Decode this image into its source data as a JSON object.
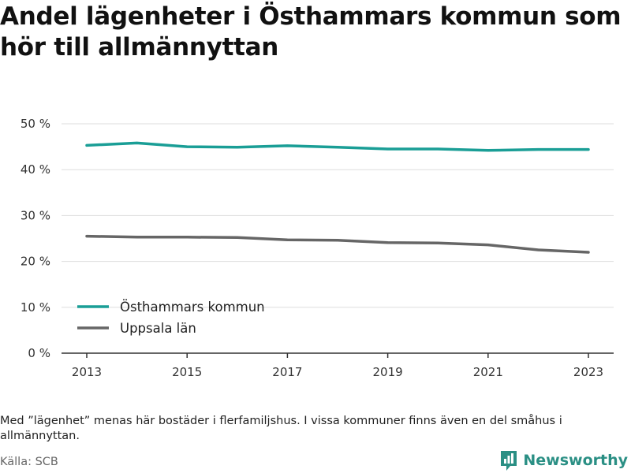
{
  "title": "Andel lägenheter i Östhammars kommun som hör till allmännyttan",
  "note": "Med ”lägenhet” menas här bostäder i flerfamiljshus. I vissa kommuner finns även en del småhus i allmännyttan.",
  "source": "Källa: SCB",
  "brand": {
    "name": "Newsworthy",
    "icon": "newsworthy-logo-icon",
    "color": "#2a8f84"
  },
  "chart_data": {
    "type": "line",
    "x": [
      2013,
      2014,
      2015,
      2016,
      2017,
      2018,
      2019,
      2020,
      2021,
      2022,
      2023
    ],
    "x_ticks": [
      "2013",
      "2015",
      "2017",
      "2019",
      "2021",
      "2023"
    ],
    "y_ticks": [
      "0 %",
      "10 %",
      "20 %",
      "30 %",
      "40 %",
      "50 %"
    ],
    "ylim": [
      0,
      50
    ],
    "grid": true,
    "legend_position": "bottom-left",
    "series": [
      {
        "name": "Östhammars kommun",
        "color": "#1a9e96",
        "values": [
          45.3,
          45.8,
          45.0,
          44.9,
          45.2,
          44.9,
          44.5,
          44.5,
          44.2,
          44.4,
          44.4
        ]
      },
      {
        "name": "Uppsala län",
        "color": "#666666",
        "values": [
          25.5,
          25.3,
          25.3,
          25.2,
          24.7,
          24.6,
          24.1,
          24.0,
          23.6,
          22.5,
          22.0
        ]
      }
    ]
  }
}
